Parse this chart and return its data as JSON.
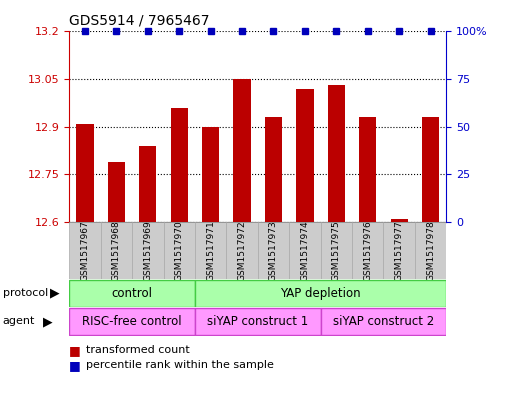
{
  "title": "GDS5914 / 7965467",
  "samples": [
    "GSM1517967",
    "GSM1517968",
    "GSM1517969",
    "GSM1517970",
    "GSM1517971",
    "GSM1517972",
    "GSM1517973",
    "GSM1517974",
    "GSM1517975",
    "GSM1517976",
    "GSM1517977",
    "GSM1517978"
  ],
  "bar_values": [
    12.91,
    12.79,
    12.84,
    12.96,
    12.9,
    13.05,
    12.93,
    13.02,
    13.03,
    12.93,
    12.61,
    12.93
  ],
  "percentile_values": [
    100,
    100,
    100,
    100,
    100,
    100,
    100,
    100,
    100,
    100,
    100,
    100
  ],
  "bar_color": "#bb0000",
  "percentile_color": "#0000bb",
  "ylim_left": [
    12.6,
    13.2
  ],
  "ylim_right": [
    0,
    100
  ],
  "yticks_left": [
    12.6,
    12.75,
    12.9,
    13.05,
    13.2
  ],
  "yticks_right": [
    0,
    25,
    50,
    75,
    100
  ],
  "ytick_labels_left": [
    "12.6",
    "12.75",
    "12.9",
    "13.05",
    "13.2"
  ],
  "ytick_labels_right": [
    "0",
    "25",
    "50",
    "75",
    "100%"
  ],
  "protocol_labels": [
    "control",
    "YAP depletion"
  ],
  "protocol_color_light": "#aaffaa",
  "protocol_color_dark": "#44cc44",
  "agent_labels": [
    "RISC-free control",
    "siYAP construct 1",
    "siYAP construct 2"
  ],
  "agent_color_light": "#ff99ff",
  "agent_color_dark": "#cc44cc",
  "sample_bg_color": "#cccccc",
  "sample_border_color": "#aaaaaa",
  "legend_items": [
    "transformed count",
    "percentile rank within the sample"
  ],
  "legend_colors": [
    "#bb0000",
    "#0000bb"
  ],
  "background_color": "#ffffff",
  "label_color_left": "#cc0000",
  "label_color_right": "#0000cc",
  "bar_width": 0.55
}
